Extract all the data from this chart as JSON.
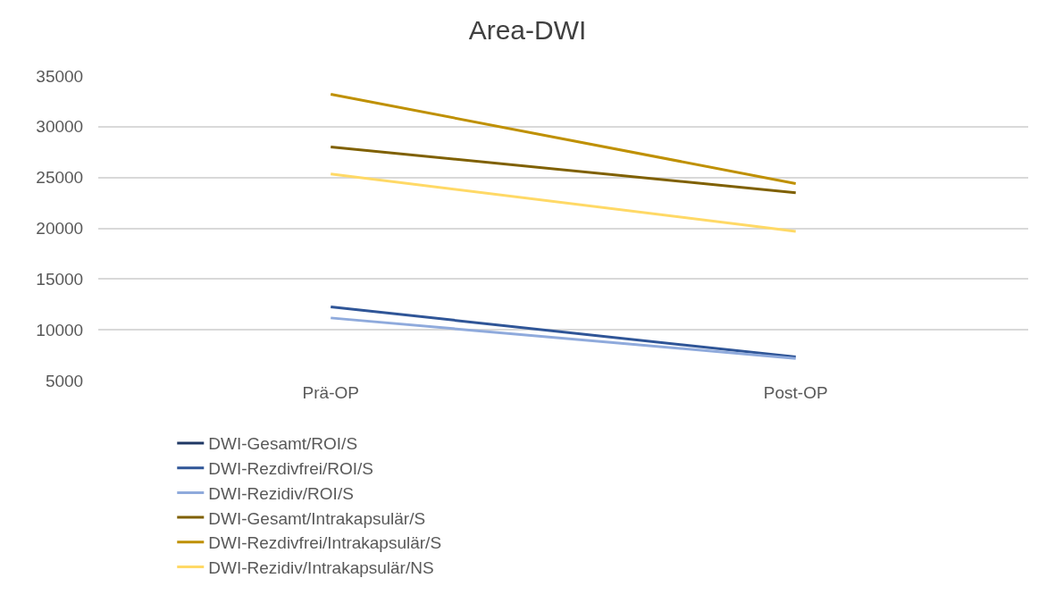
{
  "chart_data": {
    "type": "line",
    "title": "Area-DWI",
    "categories": [
      "Prä-OP",
      "Post-OP"
    ],
    "series": [
      {
        "name": "DWI-Gesamt/ROI/S",
        "color": "#1f3864",
        "values": [
          null,
          null
        ]
      },
      {
        "name": "DWI-Rezdivfrei/ROI/S",
        "color": "#2f5597",
        "values": [
          12250,
          7330
        ]
      },
      {
        "name": "DWI-Rezidiv/ROI/S",
        "color": "#8faadc",
        "values": [
          11170,
          7170
        ]
      },
      {
        "name": "DWI-Gesamt/Intrakapsulär/S",
        "color": "#7f6000",
        "values": [
          28000,
          23500
        ]
      },
      {
        "name": "DWI-Rezdivfrei/Intrakapsulär/S",
        "color": "#bf9000",
        "values": [
          33200,
          24400
        ]
      },
      {
        "name": "DWI-Rezidiv/Intrakapsulär/NS",
        "color": "#ffd966",
        "values": [
          25350,
          19700
        ]
      }
    ],
    "ylim": [
      5000,
      35000
    ],
    "yticks": [
      5000,
      10000,
      15000,
      20000,
      25000,
      30000,
      35000
    ],
    "grid": "y",
    "legend": "bottom",
    "marker": "none",
    "line_style": "solid"
  }
}
